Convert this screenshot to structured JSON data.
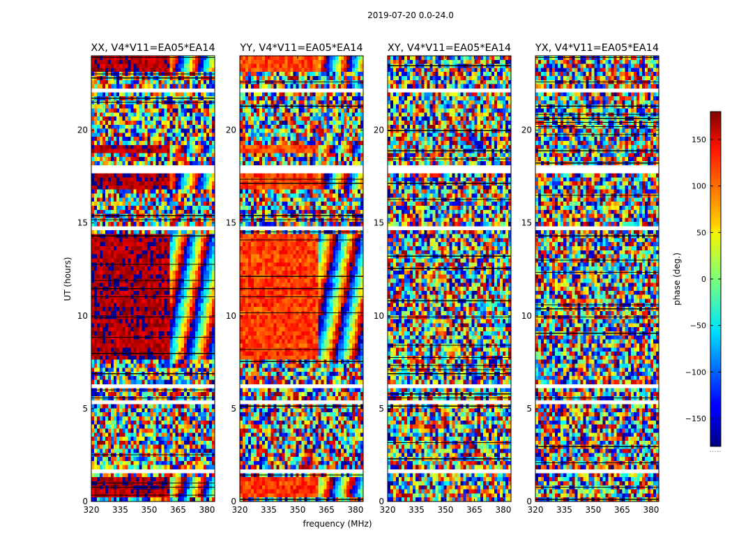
{
  "chart_data": {
    "type": "heatmap",
    "suptitle": "2019-07-20 0.0-24.0",
    "xlabel": "frequency (MHz)",
    "ylabel": "UT (hours)",
    "xlim": [
      320,
      384
    ],
    "ylim": [
      0,
      24
    ],
    "xticks": [
      320,
      335,
      350,
      365,
      380
    ],
    "yticks": [
      0,
      5,
      10,
      15,
      20
    ],
    "colorbar": {
      "label": "phase (deg.)",
      "range": [
        -180,
        180
      ],
      "ticks": [
        -150,
        -100,
        -50,
        0,
        50,
        100,
        150
      ],
      "tick_labels": [
        "−150",
        "−100",
        "−50",
        "0",
        "50",
        "100",
        "150"
      ],
      "colormap": "jet",
      "under_label": "....."
    },
    "panels": [
      {
        "title": "XX, V4*V11=EA05*EA14",
        "polarization": "XX",
        "dominant_phase_deg": 165,
        "phase_scatter_deg": 25
      },
      {
        "title": "YY, V4*V11=EA05*EA14",
        "polarization": "YY",
        "dominant_phase_deg": 115,
        "phase_scatter_deg": 25
      },
      {
        "title": "XY, V4*V11=EA05*EA14",
        "polarization": "XY",
        "dominant_phase_deg": null,
        "phase_scatter_deg": 180
      },
      {
        "title": "YX, V4*V11=EA05*EA14",
        "polarization": "YX",
        "dominant_phase_deg": null,
        "phase_scatter_deg": 180
      }
    ],
    "coherent_ut_ranges": [
      [
        0.3,
        1.4
      ],
      [
        7.6,
        14.5
      ],
      [
        16.9,
        17.6
      ],
      [
        18.8,
        19.3
      ],
      [
        23.2,
        24.0
      ]
    ],
    "coherent_freq_range_mhz": [
      320,
      361
    ],
    "flagged_ut_ranges": [
      [
        1.45,
        1.7
      ],
      [
        5.2,
        5.35
      ],
      [
        6.05,
        6.35
      ],
      [
        7.1,
        7.3
      ],
      [
        14.6,
        14.75
      ],
      [
        17.75,
        18.05
      ],
      [
        22.0,
        22.2
      ],
      [
        23.05,
        23.15
      ]
    ]
  }
}
